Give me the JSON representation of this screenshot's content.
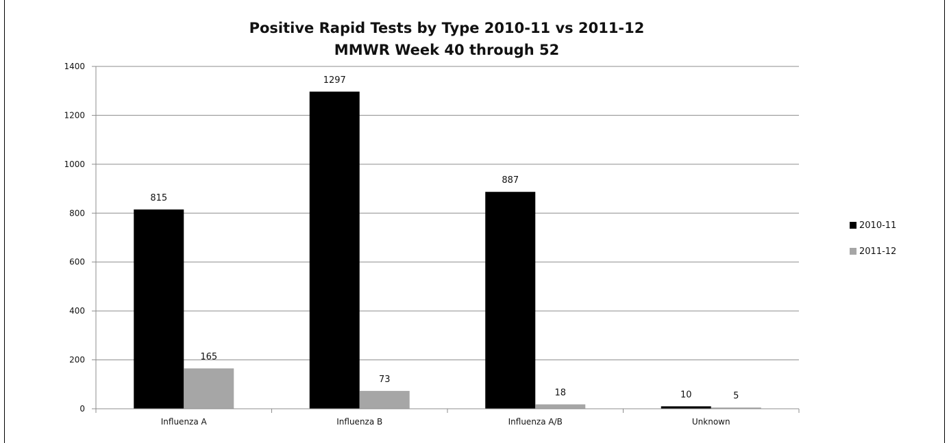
{
  "chart_data": {
    "type": "bar",
    "title_lines": [
      "Positive Rapid Tests by Type 2010-11 vs 2011-12",
      "MMWR Week 40 through 52"
    ],
    "xlabel": "",
    "ylabel": "",
    "categories": [
      "Influenza A",
      "Influenza B",
      "Influenza A/B",
      "Unknown"
    ],
    "series": [
      {
        "name": "2010-11",
        "color": "#000000",
        "values": [
          815,
          1297,
          887,
          10
        ],
        "labels": [
          "815",
          "1297",
          "887",
          "10"
        ]
      },
      {
        "name": "2011-12",
        "color": "#a6a6a6",
        "values": [
          165,
          73,
          18,
          5
        ],
        "labels": [
          "165",
          "73",
          "18",
          "5"
        ]
      }
    ],
    "ylim": [
      0,
      1400
    ],
    "yticks": [
      0,
      200,
      400,
      600,
      800,
      1000,
      1200,
      1400
    ],
    "ytick_labels": [
      "0",
      "200",
      "400",
      "600",
      "800",
      "1000",
      "1200",
      "1400"
    ],
    "grid": true,
    "legend": "right"
  }
}
